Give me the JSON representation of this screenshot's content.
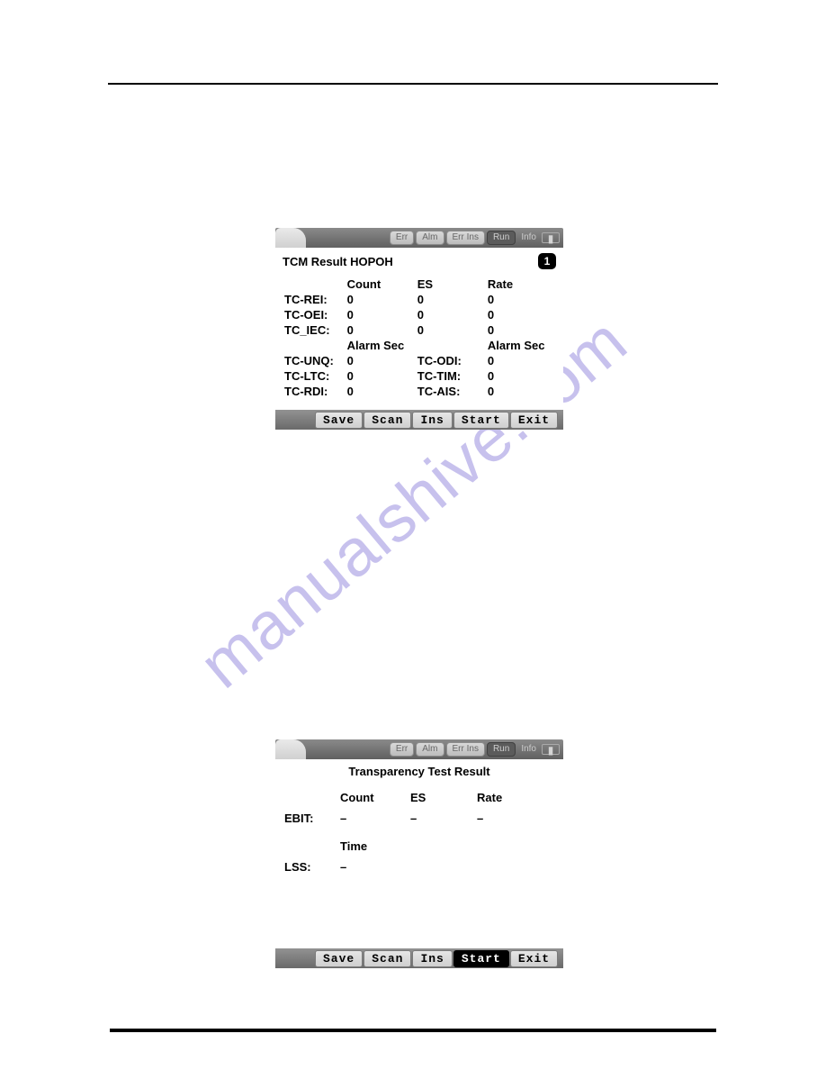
{
  "watermark": "manualshive.com",
  "top_tabs": {
    "err": "Err",
    "alm": "Alm",
    "errins": "Err Ins",
    "run": "Run",
    "info": "Info"
  },
  "panel1": {
    "title": "TCM Result HOPOH",
    "badge": "1",
    "headers": {
      "count": "Count",
      "es": "ES",
      "rate": "Rate",
      "alarmsec": "Alarm Sec"
    },
    "rows1": [
      {
        "label": "TC-REI:",
        "count": "0",
        "es": "0",
        "rate": "0"
      },
      {
        "label": "TC-OEI:",
        "count": "0",
        "es": "0",
        "rate": "0"
      },
      {
        "label": "TC_IEC:",
        "count": "0",
        "es": "0",
        "rate": "0"
      }
    ],
    "rows2": [
      {
        "l1": "TC-UNQ:",
        "v1": "0",
        "l2": "TC-ODI:",
        "v2": "0"
      },
      {
        "l1": "TC-LTC:",
        "v1": "0",
        "l2": "TC-TIM:",
        "v2": "0"
      },
      {
        "l1": "TC-RDI:",
        "v1": "0",
        "l2": "TC-AIS:",
        "v2": "0"
      }
    ],
    "buttons": {
      "save": "Save",
      "scan": "Scan",
      "ins": "Ins",
      "start": "Start",
      "exit": "Exit"
    },
    "active_button": "start"
  },
  "panel2": {
    "title": "Transparency Test Result",
    "headers": {
      "count": "Count",
      "es": "ES",
      "rate": "Rate",
      "time": "Time"
    },
    "ebit": {
      "label": "EBIT:",
      "count": "–",
      "es": "–",
      "rate": "–"
    },
    "lss": {
      "label": "LSS:",
      "time": "–"
    },
    "buttons": {
      "save": "Save",
      "scan": "Scan",
      "ins": "Ins",
      "start": "Start",
      "exit": "Exit"
    },
    "active_button": "start"
  },
  "colors": {
    "bg": "#ffffff",
    "rule": "#000000",
    "watermark": "#9a8fe0",
    "bar_grad_top": "#8a8a8a",
    "bar_grad_bot": "#606060"
  }
}
